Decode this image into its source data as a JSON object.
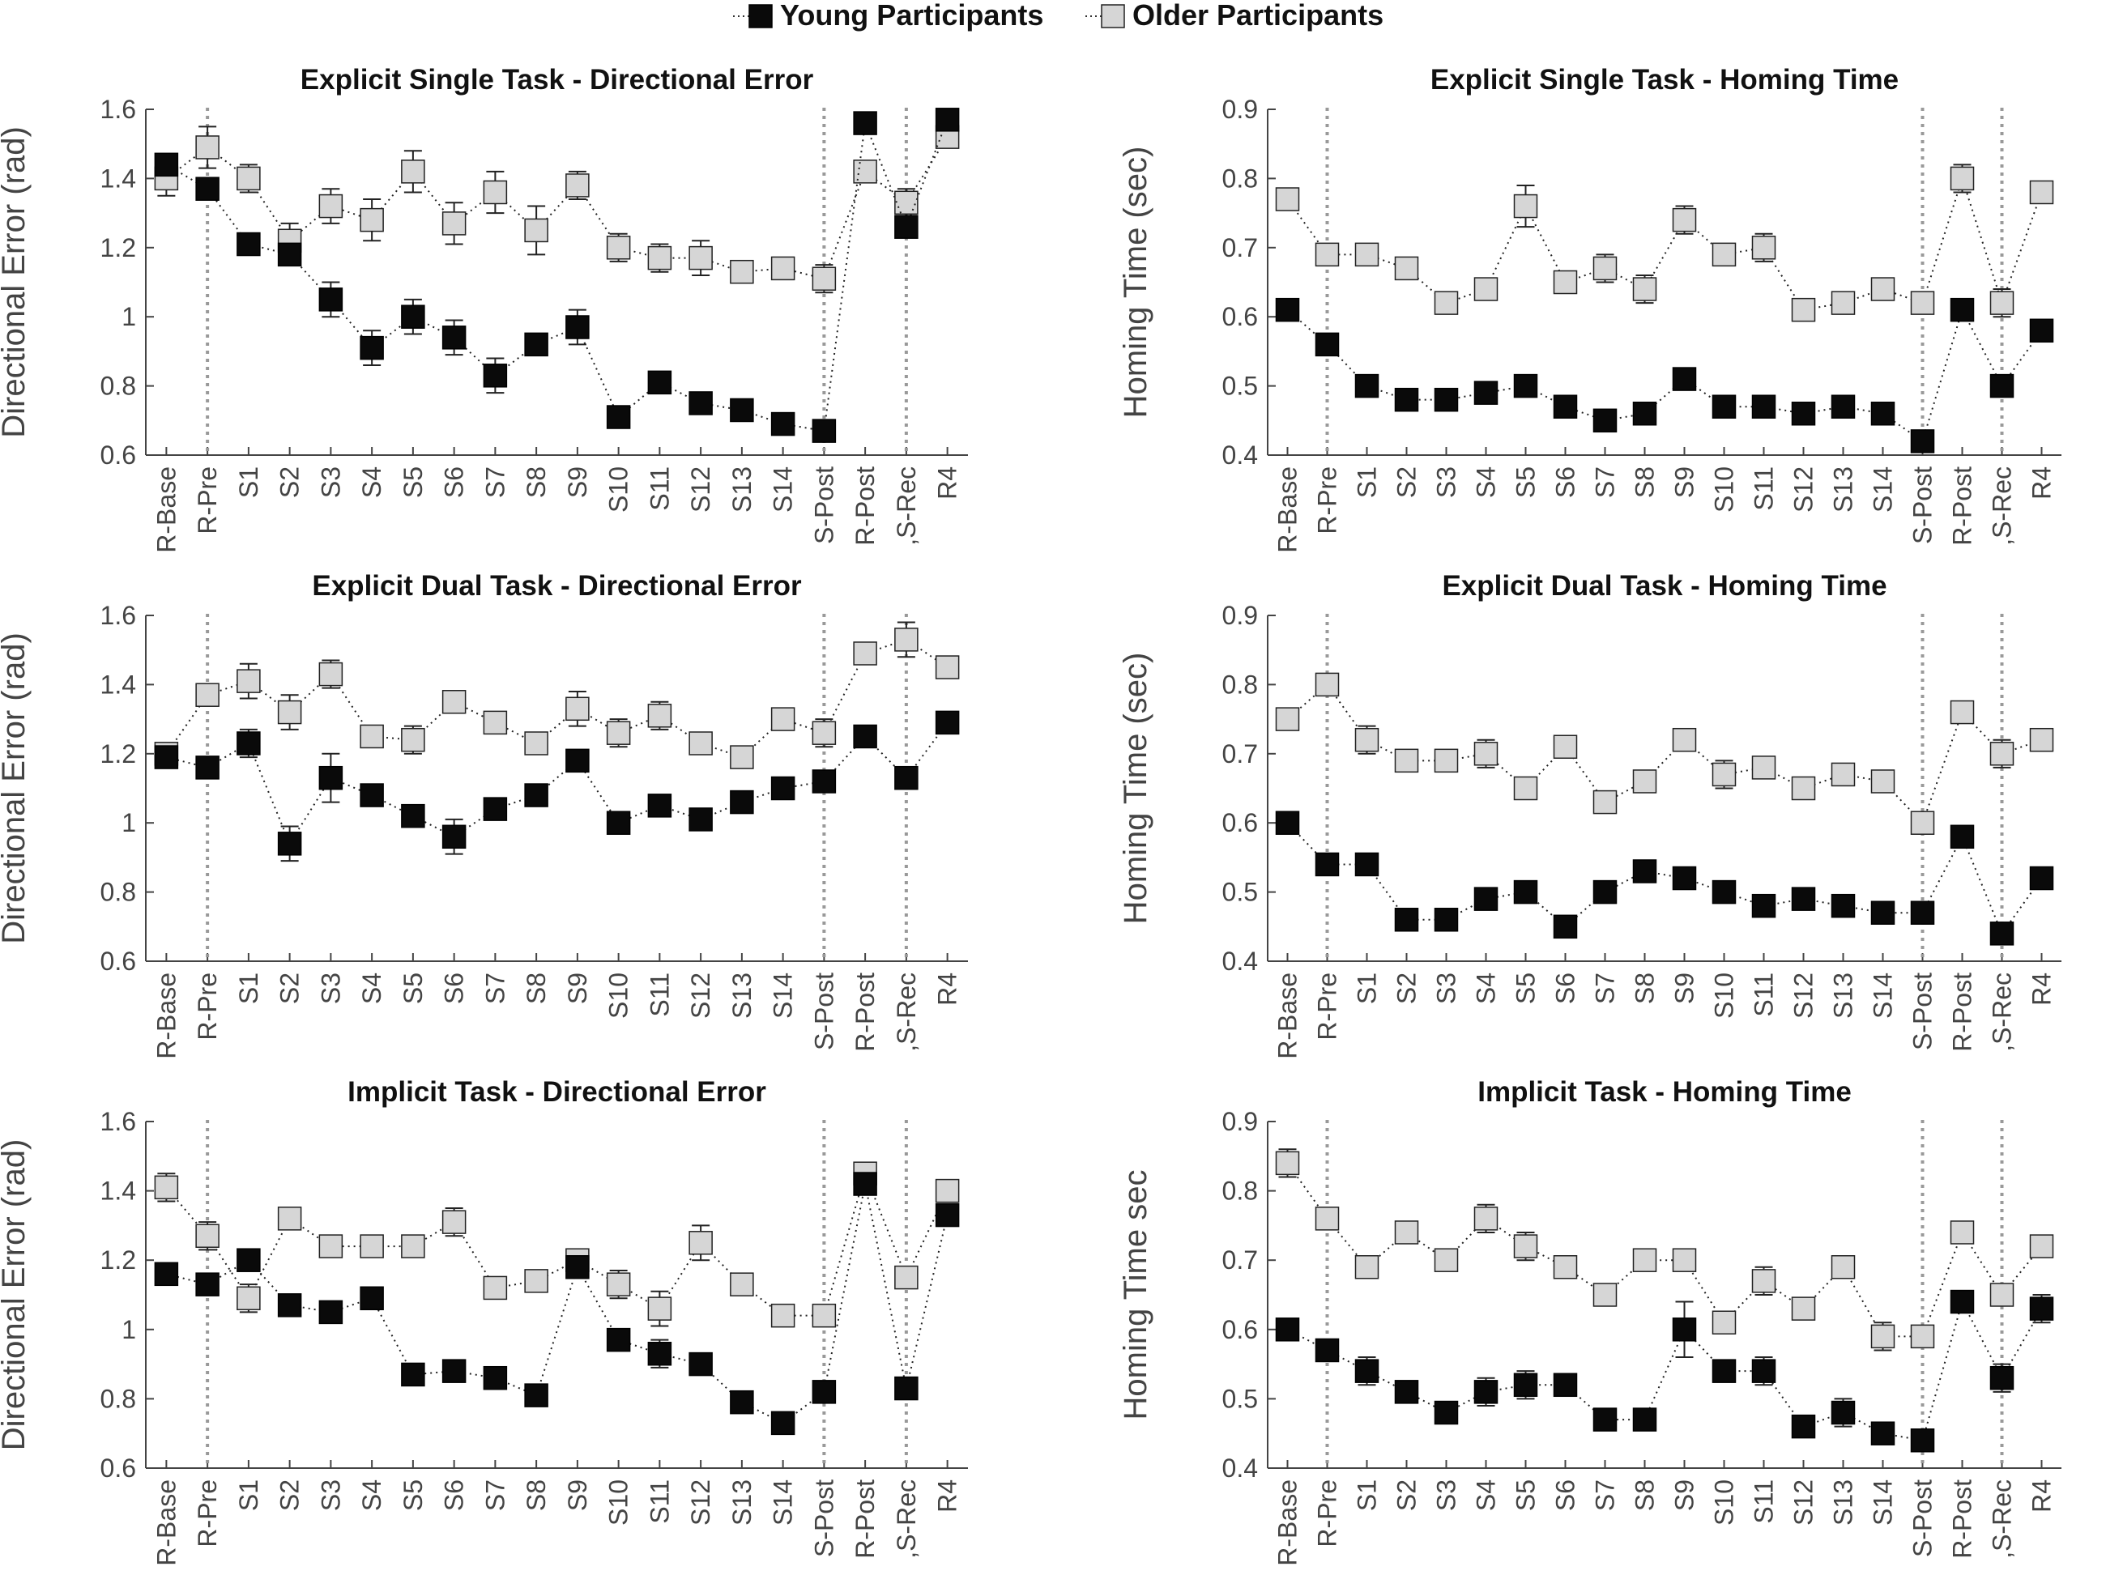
{
  "legend": {
    "young_label": "Young Participants",
    "older_label": "Older Participants"
  },
  "colors": {
    "young": "#0a0a0a",
    "older": "#d6d6d6",
    "vline": "#999999",
    "axis": "#444444"
  },
  "categories": [
    "R-Base",
    "R-Pre",
    "S1",
    "S2",
    "S3",
    "S4",
    "S5",
    "S6",
    "S7",
    "S8",
    "S9",
    "S10",
    "S11",
    "S12",
    "S13",
    "S14",
    "S-Post",
    "R-Post",
    ",S-Rec",
    "R4"
  ],
  "chart_data": [
    {
      "type": "line",
      "title": "Explicit Single Task - Directional Error",
      "ylabel": "Directional Error (rad)",
      "ylim": [
        0.6,
        1.6
      ],
      "yticks": [
        "0.6",
        "0.8",
        "1",
        "1.2",
        "1.4",
        "1.6"
      ],
      "vlines": [
        "R-Pre",
        "S-Post",
        ",S-Rec"
      ],
      "series": [
        {
          "name": "Young Participants",
          "values": [
            1.44,
            1.37,
            1.21,
            1.18,
            1.05,
            0.91,
            1.0,
            0.94,
            0.83,
            0.92,
            0.97,
            0.71,
            0.81,
            0.75,
            0.73,
            0.69,
            0.67,
            1.56,
            1.26,
            1.57
          ],
          "errors": [
            0.03,
            0.03,
            0.02,
            0.02,
            0.05,
            0.05,
            0.05,
            0.05,
            0.05,
            0.03,
            0.05,
            0.02,
            0.02,
            0.02,
            0.03,
            0.02,
            0.03,
            0.02,
            0.03,
            0.02
          ]
        },
        {
          "name": "Older Participants",
          "values": [
            1.4,
            1.49,
            1.4,
            1.22,
            1.32,
            1.28,
            1.42,
            1.27,
            1.36,
            1.25,
            1.38,
            1.2,
            1.17,
            1.17,
            1.13,
            1.14,
            1.11,
            1.42,
            1.33,
            1.52
          ],
          "errors": [
            0.05,
            0.06,
            0.04,
            0.05,
            0.05,
            0.06,
            0.06,
            0.06,
            0.06,
            0.07,
            0.04,
            0.04,
            0.04,
            0.05,
            0.03,
            0.03,
            0.04,
            0.03,
            0.04,
            0.02
          ]
        }
      ]
    },
    {
      "type": "line",
      "title": "Explicit Single Task - Homing Time",
      "ylabel": "Homing Time (sec)",
      "ylim": [
        0.4,
        0.9
      ],
      "yticks": [
        "0.4",
        "0.5",
        "0.6",
        "0.7",
        "0.8",
        "0.9"
      ],
      "vlines": [
        "R-Pre",
        "S-Post",
        ",S-Rec"
      ],
      "series": [
        {
          "name": "Young Participants",
          "values": [
            0.61,
            0.56,
            0.5,
            0.48,
            0.48,
            0.49,
            0.5,
            0.47,
            0.45,
            0.46,
            0.51,
            0.47,
            0.47,
            0.46,
            0.47,
            0.46,
            0.42,
            0.61,
            0.5,
            0.58
          ],
          "errors": [
            0.01,
            0.01,
            0.01,
            0.01,
            0.01,
            0.01,
            0.01,
            0.01,
            0.01,
            0.01,
            0.01,
            0.01,
            0.01,
            0.01,
            0.01,
            0.01,
            0.01,
            0.01,
            0.01,
            0.01
          ]
        },
        {
          "name": "Older Participants",
          "values": [
            0.77,
            0.69,
            0.69,
            0.67,
            0.62,
            0.64,
            0.76,
            0.65,
            0.67,
            0.64,
            0.74,
            0.69,
            0.7,
            0.61,
            0.62,
            0.64,
            0.62,
            0.8,
            0.62,
            0.78
          ],
          "errors": [
            0.01,
            0.01,
            0.01,
            0.01,
            0.01,
            0.01,
            0.03,
            0.01,
            0.02,
            0.02,
            0.02,
            0.01,
            0.02,
            0.01,
            0.01,
            0.01,
            0.01,
            0.02,
            0.02,
            0.01
          ]
        }
      ]
    },
    {
      "type": "line",
      "title": "Explicit Dual Task - Directional Error",
      "ylabel": "Directional Error (rad)",
      "ylim": [
        0.6,
        1.6
      ],
      "yticks": [
        "0.6",
        "0.8",
        "1",
        "1.2",
        "1.4",
        "1.6"
      ],
      "vlines": [
        "R-Pre",
        "S-Post",
        ",S-Rec"
      ],
      "series": [
        {
          "name": "Young Participants",
          "values": [
            1.19,
            1.16,
            1.23,
            0.94,
            1.13,
            1.08,
            1.02,
            0.96,
            1.04,
            1.08,
            1.18,
            1.0,
            1.05,
            1.01,
            1.06,
            1.1,
            1.12,
            1.25,
            1.13,
            1.29
          ],
          "errors": [
            0.02,
            0.03,
            0.04,
            0.05,
            0.07,
            0.03,
            0.03,
            0.05,
            0.03,
            0.02,
            0.02,
            0.02,
            0.03,
            0.02,
            0.02,
            0.02,
            0.02,
            0.02,
            0.02,
            0.02
          ]
        },
        {
          "name": "Older Participants",
          "values": [
            1.2,
            1.37,
            1.41,
            1.32,
            1.43,
            1.25,
            1.24,
            1.35,
            1.29,
            1.23,
            1.33,
            1.26,
            1.31,
            1.23,
            1.19,
            1.3,
            1.26,
            1.49,
            1.53,
            1.45
          ],
          "errors": [
            0.02,
            0.02,
            0.05,
            0.05,
            0.04,
            0.02,
            0.04,
            0.03,
            0.02,
            0.03,
            0.05,
            0.04,
            0.04,
            0.03,
            0.02,
            0.03,
            0.04,
            0.03,
            0.05,
            0.02
          ]
        }
      ]
    },
    {
      "type": "line",
      "title": "Explicit Dual Task - Homing Time",
      "ylabel": "Homing Time (sec)",
      "ylim": [
        0.4,
        0.9
      ],
      "yticks": [
        "0.4",
        "0.5",
        "0.6",
        "0.7",
        "0.8",
        "0.9"
      ],
      "vlines": [
        "R-Pre",
        "S-Post",
        ",S-Rec"
      ],
      "series": [
        {
          "name": "Young Participants",
          "values": [
            0.6,
            0.54,
            0.54,
            0.46,
            0.46,
            0.49,
            0.5,
            0.45,
            0.5,
            0.53,
            0.52,
            0.5,
            0.48,
            0.49,
            0.48,
            0.47,
            0.47,
            0.58,
            0.44,
            0.52
          ],
          "errors": [
            0.01,
            0.01,
            0.01,
            0.01,
            0.01,
            0.01,
            0.01,
            0.01,
            0.01,
            0.01,
            0.01,
            0.01,
            0.01,
            0.01,
            0.01,
            0.01,
            0.01,
            0.01,
            0.01,
            0.01
          ]
        },
        {
          "name": "Older Participants",
          "values": [
            0.75,
            0.8,
            0.72,
            0.69,
            0.69,
            0.7,
            0.65,
            0.71,
            0.63,
            0.66,
            0.72,
            0.67,
            0.68,
            0.65,
            0.67,
            0.66,
            0.6,
            0.76,
            0.7,
            0.72
          ],
          "errors": [
            0.01,
            0.01,
            0.02,
            0.01,
            0.01,
            0.02,
            0.01,
            0.01,
            0.01,
            0.01,
            0.01,
            0.02,
            0.01,
            0.01,
            0.01,
            0.01,
            0.01,
            0.01,
            0.02,
            0.01
          ]
        }
      ]
    },
    {
      "type": "line",
      "title": "Implicit Task - Directional Error",
      "ylabel": "Directional Error (rad)",
      "ylim": [
        0.6,
        1.6
      ],
      "yticks": [
        "0.6",
        "0.8",
        "1",
        "1.2",
        "1.4",
        "1.6"
      ],
      "vlines": [
        "R-Pre",
        "S-Post",
        ",S-Rec"
      ],
      "series": [
        {
          "name": "Young Participants",
          "values": [
            1.16,
            1.13,
            1.2,
            1.07,
            1.05,
            1.09,
            0.87,
            0.88,
            0.86,
            0.81,
            1.18,
            0.97,
            0.93,
            0.9,
            0.79,
            0.73,
            0.82,
            1.42,
            0.83,
            1.33
          ],
          "errors": [
            0.02,
            0.03,
            0.02,
            0.02,
            0.02,
            0.02,
            0.02,
            0.02,
            0.02,
            0.02,
            0.02,
            0.03,
            0.04,
            0.02,
            0.02,
            0.02,
            0.03,
            0.02,
            0.03,
            0.02
          ]
        },
        {
          "name": "Older Participants",
          "values": [
            1.41,
            1.27,
            1.09,
            1.32,
            1.24,
            1.24,
            1.24,
            1.31,
            1.12,
            1.14,
            1.2,
            1.13,
            1.06,
            1.25,
            1.13,
            1.04,
            1.04,
            1.45,
            1.15,
            1.4
          ],
          "errors": [
            0.04,
            0.04,
            0.04,
            0.02,
            0.02,
            0.03,
            0.02,
            0.04,
            0.03,
            0.02,
            0.03,
            0.04,
            0.05,
            0.05,
            0.02,
            0.03,
            0.02,
            0.02,
            0.03,
            0.02
          ]
        }
      ]
    },
    {
      "type": "line",
      "title": "Implicit Task - Homing Time",
      "ylabel": "Homing Time sec",
      "ylim": [
        0.4,
        0.9
      ],
      "yticks": [
        "0.4",
        "0.5",
        "0.6",
        "0.7",
        "0.8",
        "0.9"
      ],
      "vlines": [
        "R-Pre",
        "S-Post",
        ",S-Rec"
      ],
      "series": [
        {
          "name": "Young Participants",
          "values": [
            0.6,
            0.57,
            0.54,
            0.51,
            0.48,
            0.51,
            0.52,
            0.52,
            0.47,
            0.47,
            0.6,
            0.54,
            0.54,
            0.46,
            0.48,
            0.45,
            0.44,
            0.64,
            0.53,
            0.63
          ],
          "errors": [
            0.01,
            0.01,
            0.02,
            0.01,
            0.01,
            0.02,
            0.02,
            0.01,
            0.01,
            0.01,
            0.04,
            0.01,
            0.02,
            0.01,
            0.02,
            0.01,
            0.01,
            0.01,
            0.02,
            0.02
          ]
        },
        {
          "name": "Older Participants",
          "values": [
            0.84,
            0.76,
            0.69,
            0.74,
            0.7,
            0.76,
            0.72,
            0.69,
            0.65,
            0.7,
            0.7,
            0.61,
            0.67,
            0.63,
            0.69,
            0.59,
            0.59,
            0.74,
            0.65,
            0.72
          ],
          "errors": [
            0.02,
            0.01,
            0.01,
            0.01,
            0.01,
            0.02,
            0.02,
            0.01,
            0.01,
            0.01,
            0.01,
            0.01,
            0.02,
            0.01,
            0.01,
            0.02,
            0.01,
            0.01,
            0.01,
            0.01
          ]
        }
      ]
    }
  ]
}
